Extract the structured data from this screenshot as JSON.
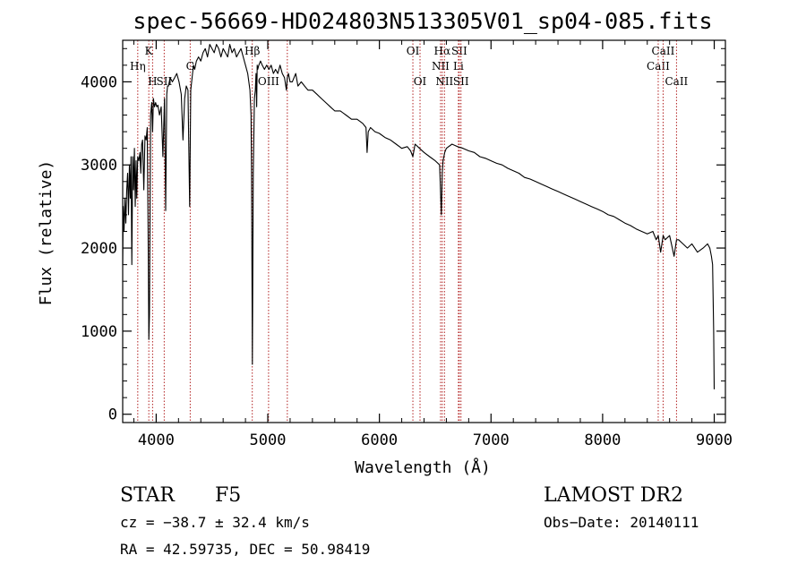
{
  "chart_data": {
    "type": "line",
    "title": "spec-56669-HD024803N513305V01_sp04-085.fits",
    "xlabel": "Wavelength (Å)",
    "ylabel": "Flux (relative)",
    "xlim": [
      3700,
      9100
    ],
    "ylim": [
      -100,
      4500
    ],
    "xticks": [
      4000,
      5000,
      6000,
      7000,
      8000,
      9000
    ],
    "yticks": [
      0,
      1000,
      2000,
      3000,
      4000
    ],
    "grid": false,
    "series": [
      {
        "color": "#000000",
        "x": [
          3700,
          3705,
          3712,
          3720,
          3728,
          3736,
          3744,
          3752,
          3760,
          3768,
          3775,
          3782,
          3790,
          3797,
          3805,
          3812,
          3820,
          3826,
          3835,
          3845,
          3855,
          3862,
          3870,
          3878,
          3889,
          3900,
          3910,
          3920,
          3928,
          3934,
          3940,
          3950,
          3960,
          3968,
          3975,
          3985,
          3995,
          4005,
          4015,
          4030,
          4045,
          4060,
          4075,
          4085,
          4095,
          4102,
          4110,
          4125,
          4145,
          4165,
          4185,
          4205,
          4225,
          4240,
          4255,
          4270,
          4285,
          4300,
          4310,
          4318,
          4326,
          4335,
          4345,
          4360,
          4380,
          4400,
          4420,
          4440,
          4460,
          4480,
          4500,
          4520,
          4540,
          4560,
          4580,
          4600,
          4620,
          4640,
          4660,
          4680,
          4700,
          4720,
          4740,
          4760,
          4780,
          4800,
          4820,
          4840,
          4850,
          4855,
          4862,
          4870,
          4880,
          4888,
          4895,
          4900,
          4905,
          4910,
          4920,
          4935,
          4950,
          4970,
          4990,
          5010,
          5030,
          5050,
          5070,
          5090,
          5110,
          5130,
          5150,
          5167,
          5175,
          5185,
          5200,
          5220,
          5250,
          5270,
          5300,
          5330,
          5360,
          5400,
          5440,
          5480,
          5520,
          5560,
          5600,
          5650,
          5700,
          5750,
          5800,
          5850,
          5880,
          5890,
          5900,
          5920,
          5960,
          6000,
          6050,
          6100,
          6150,
          6200,
          6250,
          6280,
          6300,
          6320,
          6360,
          6400,
          6450,
          6500,
          6540,
          6555,
          6563,
          6570,
          6585,
          6600,
          6650,
          6700,
          6750,
          6800,
          6850,
          6900,
          6950,
          7000,
          7050,
          7100,
          7150,
          7200,
          7250,
          7300,
          7350,
          7400,
          7450,
          7500,
          7550,
          7600,
          7650,
          7700,
          7750,
          7800,
          7850,
          7900,
          7950,
          8000,
          8050,
          8100,
          8150,
          8200,
          8250,
          8300,
          8350,
          8400,
          8450,
          8480,
          8498,
          8520,
          8542,
          8560,
          8600,
          8640,
          8662,
          8680,
          8720,
          8760,
          8800,
          8850,
          8900,
          8940,
          8960,
          8975,
          8985,
          8995,
          9000
        ],
        "values": [
          1800,
          2500,
          2200,
          2600,
          2300,
          2700,
          2900,
          2400,
          3000,
          2600,
          3100,
          1800,
          3100,
          2700,
          3200,
          2500,
          3050,
          2600,
          3100,
          3050,
          3150,
          2900,
          3250,
          3300,
          2700,
          3350,
          3300,
          3450,
          2200,
          900,
          1200,
          3600,
          3750,
          3400,
          3800,
          3700,
          3750,
          3700,
          3720,
          3600,
          3700,
          3100,
          3800,
          2450,
          3850,
          3950,
          3950,
          4050,
          4000,
          4050,
          4100,
          4000,
          3850,
          3300,
          3800,
          3950,
          3900,
          2500,
          3900,
          4000,
          4100,
          4200,
          4150,
          4250,
          4300,
          4250,
          4350,
          4400,
          4300,
          4450,
          4400,
          4350,
          4450,
          4400,
          4300,
          4400,
          4350,
          4300,
          4450,
          4350,
          4400,
          4300,
          4350,
          4400,
          4300,
          4200,
          4100,
          3900,
          3600,
          2900,
          600,
          2900,
          3800,
          3900,
          4100,
          3700,
          4200,
          4150,
          4200,
          4250,
          4200,
          4150,
          4200,
          4150,
          4200,
          4100,
          4150,
          4100,
          4200,
          4100,
          4050,
          3900,
          4050,
          4100,
          4000,
          4000,
          4100,
          3950,
          4000,
          3950,
          3900,
          3900,
          3850,
          3800,
          3750,
          3700,
          3650,
          3650,
          3600,
          3550,
          3550,
          3500,
          3450,
          3150,
          3400,
          3450,
          3400,
          3380,
          3330,
          3300,
          3250,
          3200,
          3220,
          3170,
          3100,
          3250,
          3200,
          3150,
          3100,
          3050,
          3000,
          2400,
          2900,
          3050,
          3150,
          3200,
          3250,
          3220,
          3200,
          3170,
          3150,
          3100,
          3080,
          3050,
          3020,
          3000,
          2960,
          2930,
          2900,
          2850,
          2830,
          2800,
          2770,
          2740,
          2710,
          2680,
          2650,
          2620,
          2590,
          2560,
          2530,
          2500,
          2470,
          2440,
          2400,
          2380,
          2340,
          2300,
          2270,
          2230,
          2200,
          2170,
          2200,
          2100,
          2150,
          1950,
          2150,
          2100,
          2150,
          1900,
          2100,
          2100,
          2050,
          2000,
          2050,
          1950,
          2000,
          2050,
          2000,
          1900,
          1800,
          1000,
          300
        ]
      }
    ],
    "lines": [
      {
        "wavelength": 3835,
        "label": "Hη",
        "row": 2
      },
      {
        "wavelength": 3934,
        "label": "K",
        "row": 1
      },
      {
        "wavelength": 3968,
        "label": "H",
        "row": 3
      },
      {
        "wavelength": 4072,
        "label": "SII",
        "row": 3
      },
      {
        "wavelength": 4305,
        "label": "G",
        "row": 2
      },
      {
        "wavelength": 4861,
        "label": "Hβ",
        "row": 1
      },
      {
        "wavelength": 5007,
        "label": "OIII",
        "row": 3
      },
      {
        "wavelength": 5175,
        "label": "",
        "row": 0
      },
      {
        "wavelength": 6300,
        "label": "OI",
        "row": 1
      },
      {
        "wavelength": 6364,
        "label": "OI",
        "row": 3
      },
      {
        "wavelength": 6548,
        "label": "NII",
        "row": 2
      },
      {
        "wavelength": 6563,
        "label": "Hα",
        "row": 1
      },
      {
        "wavelength": 6583,
        "label": "NII",
        "row": 3
      },
      {
        "wavelength": 6708,
        "label": "Li",
        "row": 2
      },
      {
        "wavelength": 6716,
        "label": "SII",
        "row": 1
      },
      {
        "wavelength": 6731,
        "label": "SII",
        "row": 3
      },
      {
        "wavelength": 8498,
        "label": "CaII",
        "row": 2
      },
      {
        "wavelength": 8542,
        "label": "CaII",
        "row": 1
      },
      {
        "wavelength": 8662,
        "label": "CaII",
        "row": 3
      }
    ]
  },
  "info": {
    "class": "STAR",
    "subclass": "F5",
    "survey": "LAMOST DR2",
    "cz": "cz = −38.7 ± 32.4 km/s",
    "obs_date": "Obs−Date: 20140111",
    "coords": "RA =  42.59735, DEC =  50.98419"
  },
  "colors": {
    "line_marker": "#b22222",
    "spectrum": "#000000"
  }
}
